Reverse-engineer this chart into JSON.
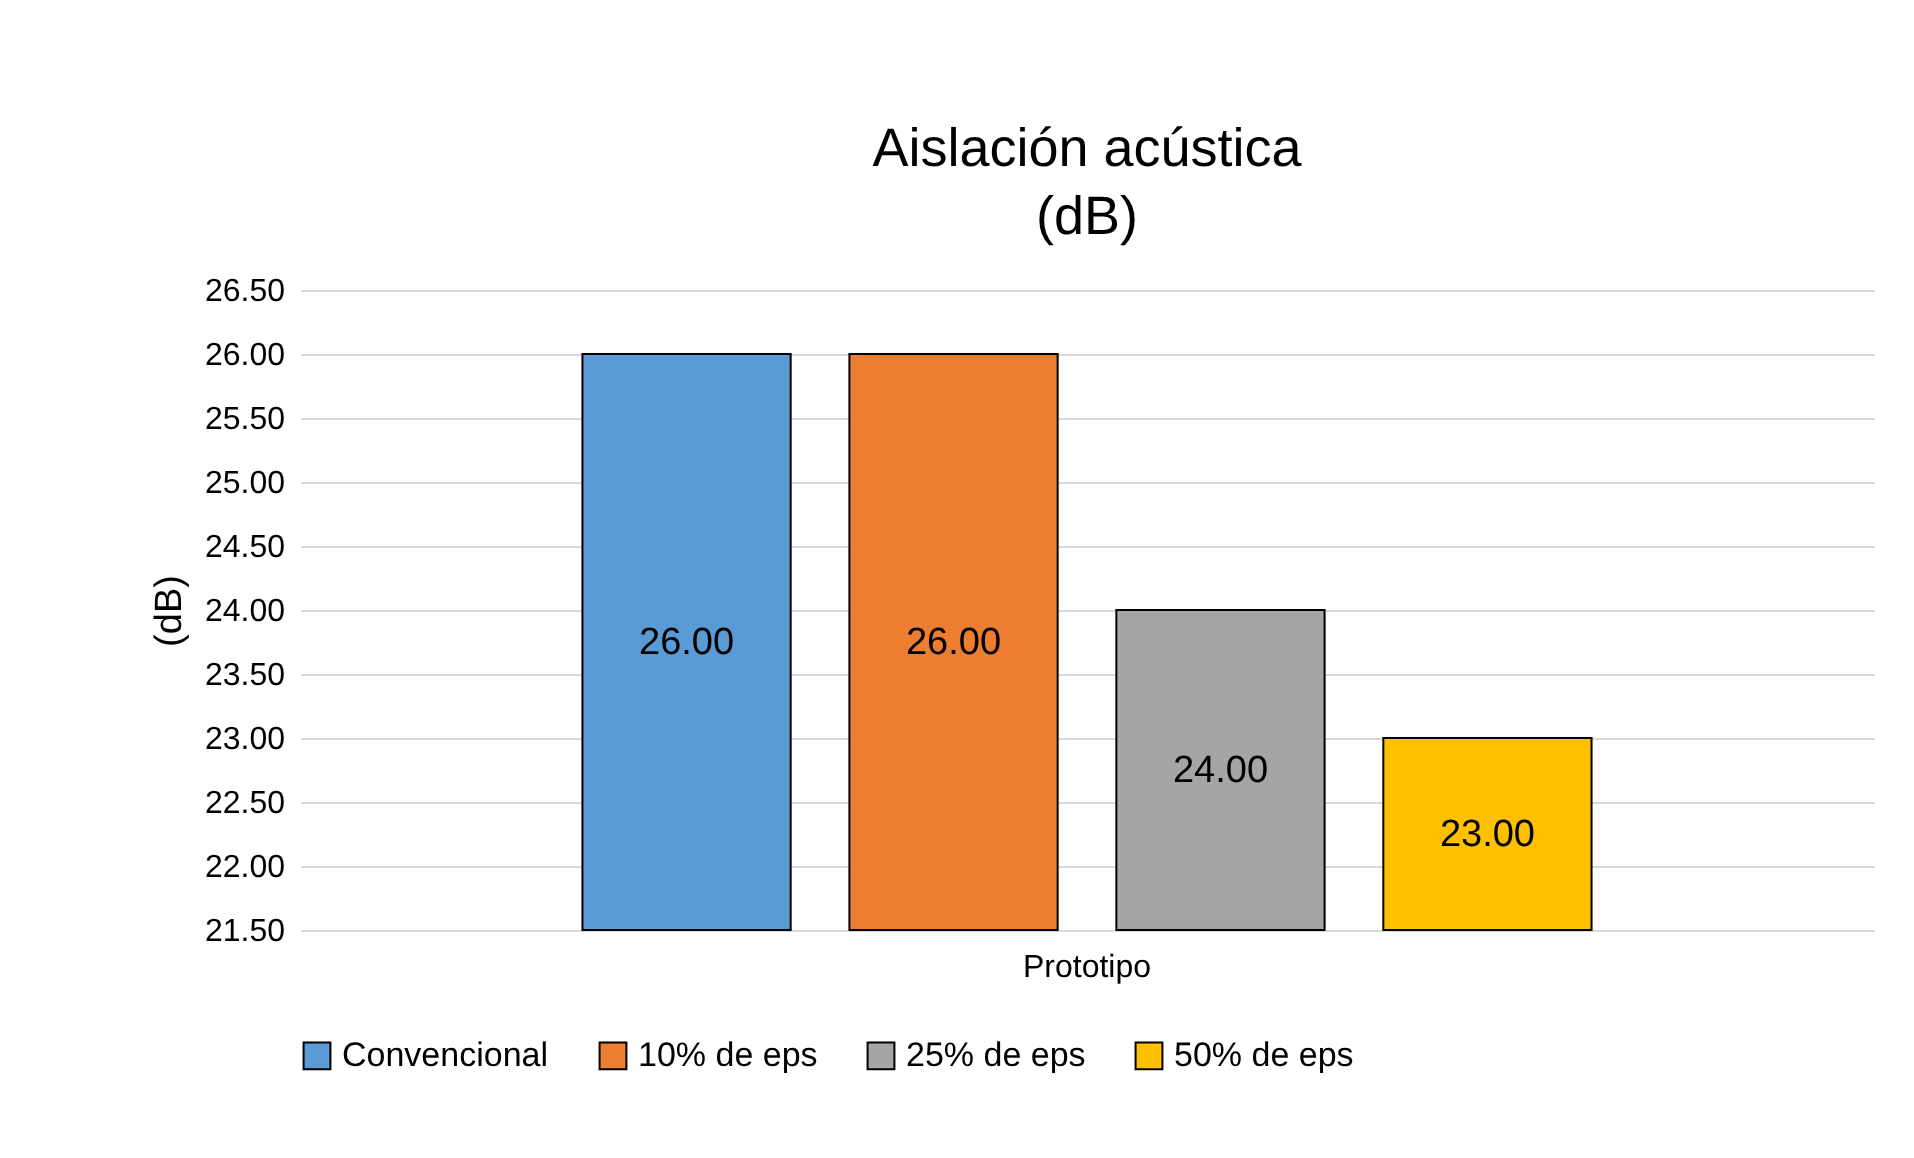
{
  "chart_data": {
    "type": "bar",
    "title": "Aislación acústica\n(dB)",
    "ylabel": "(dB)",
    "categories": [
      "Prototipo"
    ],
    "series": [
      {
        "name": "Convencional",
        "color": "#5b9bd5",
        "values": [
          26.0
        ],
        "value_labels": [
          "26.00"
        ]
      },
      {
        "name": "10% de eps",
        "color": "#ed7d31",
        "values": [
          26.0
        ],
        "value_labels": [
          "26.00"
        ]
      },
      {
        "name": "25% de eps",
        "color": "#a5a5a5",
        "values": [
          24.0
        ],
        "value_labels": [
          "24.00"
        ]
      },
      {
        "name": "50% de eps",
        "color": "#ffc000",
        "values": [
          23.0
        ],
        "value_labels": [
          "23.00"
        ]
      }
    ],
    "ylim": [
      21.5,
      26.5
    ],
    "yticks": [
      {
        "value": 21.5,
        "label": "21.50"
      },
      {
        "value": 22,
        "label": "22.00"
      },
      {
        "value": 22.5,
        "label": "22.50"
      },
      {
        "value": 23,
        "label": "23.00"
      },
      {
        "value": 23.5,
        "label": "23.50"
      },
      {
        "value": 24,
        "label": "24.00"
      },
      {
        "value": 24.5,
        "label": "24.50"
      },
      {
        "value": 25,
        "label": "25.00"
      },
      {
        "value": 25.5,
        "label": "25.50"
      },
      {
        "value": 26,
        "label": "26.00"
      },
      {
        "value": 26.5,
        "label": "26.50"
      }
    ],
    "grid": "y",
    "legend": "bottom"
  }
}
